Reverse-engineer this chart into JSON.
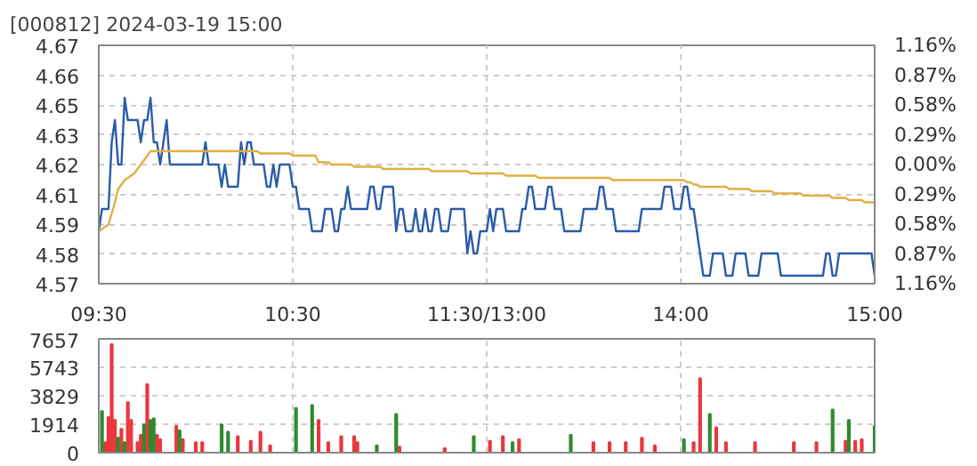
{
  "chart_data": [
    {
      "type": "line",
      "title": "[000812] 2024-03-19 15:00",
      "categories": [
        "09:30",
        null,
        null,
        null,
        null,
        null,
        null,
        null,
        null,
        null,
        null,
        null,
        null,
        null,
        null,
        null,
        null,
        null,
        null,
        null,
        null,
        null,
        null,
        null,
        null,
        null,
        null,
        null,
        null,
        null,
        null,
        null,
        null,
        null,
        null,
        null,
        null,
        null,
        null,
        null,
        null,
        null,
        null,
        null,
        null,
        null,
        null,
        null,
        null,
        null,
        null,
        null,
        null,
        null,
        null,
        null,
        null,
        null,
        null,
        null,
        "10:30",
        null,
        null,
        null,
        null,
        null,
        null,
        null,
        null,
        null,
        null,
        null,
        null,
        null,
        null,
        null,
        null,
        null,
        null,
        null,
        null,
        null,
        null,
        null,
        null,
        null,
        null,
        null,
        null,
        null,
        null,
        null,
        null,
        null,
        null,
        null,
        null,
        null,
        null,
        null,
        null,
        null,
        null,
        null,
        null,
        null,
        null,
        null,
        null,
        null,
        null,
        null,
        null,
        null,
        null,
        null,
        null,
        null,
        null,
        null,
        "11:30/13:00",
        null,
        null,
        null,
        null,
        null,
        null,
        null,
        null,
        null,
        null,
        null,
        null,
        null,
        null,
        null,
        null,
        null,
        null,
        null,
        null,
        null,
        null,
        null,
        null,
        null,
        null,
        null,
        null,
        null,
        null,
        null,
        null,
        null,
        null,
        null,
        null,
        null,
        null,
        null,
        null,
        null,
        null,
        null,
        null,
        null,
        null,
        null,
        null,
        null,
        null,
        null,
        null,
        null,
        null,
        null,
        null,
        null,
        null,
        null,
        "14:00",
        null,
        null,
        null,
        null,
        null,
        null,
        null,
        null,
        null,
        null,
        null,
        null,
        null,
        null,
        null,
        null,
        null,
        null,
        null,
        null,
        null,
        null,
        null,
        null,
        null,
        null,
        null,
        null,
        null,
        null,
        null,
        null,
        null,
        null,
        null,
        null,
        null,
        null,
        null,
        null,
        null,
        null,
        null,
        null,
        null,
        null,
        null,
        null,
        null,
        null,
        null,
        null,
        null,
        null,
        null,
        null,
        null,
        null,
        null,
        "15:00"
      ],
      "ylim": [
        4.5664,
        4.6736
      ],
      "yticks": [
        {
          "value": 4.5664,
          "label": "4.57"
        },
        {
          "value": 4.5798,
          "label": "4.58"
        },
        {
          "value": 4.5932,
          "label": "4.59"
        },
        {
          "value": 4.6066,
          "label": "4.61"
        },
        {
          "value": 4.62,
          "label": "4.62"
        },
        {
          "value": 4.6334,
          "label": "4.63"
        },
        {
          "value": 4.6468,
          "label": "4.65"
        },
        {
          "value": 4.6602,
          "label": "4.66"
        },
        {
          "value": 4.6736,
          "label": "4.67"
        }
      ],
      "y2lim": [
        -1.16,
        1.16
      ],
      "y2ticks": [
        {
          "value": -1.16,
          "label": "1.16%"
        },
        {
          "value": -0.87,
          "label": "0.87%"
        },
        {
          "value": -0.58,
          "label": "0.58%"
        },
        {
          "value": -0.29,
          "label": "0.29%"
        },
        {
          "value": 0,
          "label": "0.00%"
        },
        {
          "value": 0.29,
          "label": "0.29%"
        },
        {
          "value": 0.58,
          "label": "0.58%"
        },
        {
          "value": 0.87,
          "label": "0.87%"
        },
        {
          "value": 1.16,
          "label": "1.16%"
        }
      ],
      "grid": true,
      "series": [
        {
          "color": "#2a5caa",
          "values": [
            4.59,
            4.6,
            4.6,
            4.6,
            4.63,
            4.64,
            4.62,
            4.62,
            4.65,
            4.64,
            4.64,
            4.64,
            4.64,
            4.63,
            4.64,
            4.64,
            4.65,
            4.63,
            4.63,
            4.62,
            4.63,
            4.64,
            4.62,
            4.62,
            4.62,
            4.62,
            4.62,
            4.62,
            4.62,
            4.62,
            4.62,
            4.62,
            4.62,
            4.63,
            4.62,
            4.62,
            4.62,
            4.62,
            4.61,
            4.62,
            4.61,
            4.61,
            4.61,
            4.61,
            4.63,
            4.62,
            4.63,
            4.63,
            4.62,
            4.62,
            4.62,
            4.62,
            4.61,
            4.61,
            4.62,
            4.61,
            4.62,
            4.62,
            4.62,
            4.62,
            4.61,
            4.61,
            4.6,
            4.6,
            4.6,
            4.6,
            4.59,
            4.59,
            4.59,
            4.59,
            4.6,
            4.6,
            4.6,
            4.59,
            4.59,
            4.6,
            4.6,
            4.61,
            4.6,
            4.6,
            4.6,
            4.6,
            4.6,
            4.6,
            4.61,
            4.61,
            4.6,
            4.6,
            4.61,
            4.61,
            4.61,
            4.61,
            4.59,
            4.6,
            4.6,
            4.59,
            4.59,
            4.59,
            4.6,
            4.59,
            4.59,
            4.6,
            4.59,
            4.59,
            4.6,
            4.6,
            4.59,
            4.59,
            4.59,
            4.6,
            4.6,
            4.6,
            4.6,
            4.6,
            4.58,
            4.59,
            4.58,
            4.58,
            4.59,
            4.59,
            4.59,
            4.6,
            4.59,
            4.6,
            4.6,
            4.6,
            4.59,
            4.59,
            4.59,
            4.59,
            4.59,
            4.6,
            4.6,
            4.61,
            4.61,
            4.6,
            4.6,
            4.6,
            4.6,
            4.61,
            4.61,
            4.6,
            4.6,
            4.6,
            4.59,
            4.59,
            4.59,
            4.59,
            4.59,
            4.59,
            4.6,
            4.6,
            4.6,
            4.6,
            4.6,
            4.61,
            4.61,
            4.6,
            4.6,
            4.6,
            4.59,
            4.59,
            4.59,
            4.59,
            4.59,
            4.59,
            4.59,
            4.59,
            4.6,
            4.6,
            4.6,
            4.6,
            4.6,
            4.6,
            4.6,
            4.61,
            4.61,
            4.61,
            4.6,
            4.6,
            4.6,
            4.61,
            4.61,
            4.6,
            4.6,
            4.59,
            4.58,
            4.57,
            4.57,
            4.57,
            4.58,
            4.58,
            4.58,
            4.58,
            4.57,
            4.57,
            4.57,
            4.58,
            4.58,
            4.58,
            4.58,
            4.57,
            4.57,
            4.57,
            4.57,
            4.58,
            4.58,
            4.58,
            4.58,
            4.58,
            4.58,
            4.57,
            4.57,
            4.57,
            4.57,
            4.57,
            4.57,
            4.57,
            4.57,
            4.57,
            4.57,
            4.57,
            4.57,
            4.57,
            4.57,
            4.58,
            4.58,
            4.57,
            4.57,
            4.58,
            4.58,
            4.58,
            4.58,
            4.58,
            4.58,
            4.58,
            4.58,
            4.58,
            4.58,
            4.58,
            4.57
          ]
        },
        {
          "color": "#e0b040",
          "values": [
            4.59,
            4.591,
            4.592,
            4.593,
            4.598,
            4.603,
            4.609,
            4.611,
            4.613,
            4.614,
            4.615,
            4.616,
            4.618,
            4.62,
            4.622,
            4.624,
            4.626,
            4.626,
            4.626,
            4.626,
            4.626,
            4.626,
            4.626,
            4.626,
            4.626,
            4.626,
            4.626,
            4.626,
            4.626,
            4.626,
            4.626,
            4.626,
            4.626,
            4.626,
            4.626,
            4.626,
            4.626,
            4.626,
            4.626,
            4.626,
            4.626,
            4.626,
            4.626,
            4.626,
            4.626,
            4.626,
            4.626,
            4.626,
            4.626,
            4.626,
            4.625,
            4.625,
            4.625,
            4.625,
            4.625,
            4.625,
            4.625,
            4.625,
            4.625,
            4.625,
            4.624,
            4.624,
            4.624,
            4.624,
            4.624,
            4.624,
            4.624,
            4.624,
            4.621,
            4.621,
            4.621,
            4.621,
            4.62,
            4.62,
            4.62,
            4.62,
            4.62,
            4.62,
            4.62,
            4.619,
            4.619,
            4.619,
            4.619,
            4.619,
            4.619,
            4.619,
            4.619,
            4.619,
            4.618,
            4.618,
            4.618,
            4.618,
            4.618,
            4.618,
            4.618,
            4.618,
            4.618,
            4.618,
            4.618,
            4.618,
            4.618,
            4.618,
            4.618,
            4.617,
            4.617,
            4.617,
            4.617,
            4.617,
            4.617,
            4.617,
            4.617,
            4.617,
            4.617,
            4.617,
            4.617,
            4.616,
            4.616,
            4.616,
            4.616,
            4.616,
            4.616,
            4.616,
            4.616,
            4.616,
            4.616,
            4.616,
            4.615,
            4.615,
            4.615,
            4.615,
            4.615,
            4.615,
            4.615,
            4.615,
            4.615,
            4.615,
            4.614,
            4.614,
            4.614,
            4.614,
            4.614,
            4.614,
            4.614,
            4.614,
            4.614,
            4.614,
            4.614,
            4.614,
            4.614,
            4.614,
            4.614,
            4.614,
            4.614,
            4.614,
            4.614,
            4.614,
            4.614,
            4.614,
            4.614,
            4.613,
            4.613,
            4.613,
            4.613,
            4.613,
            4.613,
            4.613,
            4.613,
            4.613,
            4.613,
            4.613,
            4.613,
            4.613,
            4.613,
            4.613,
            4.613,
            4.613,
            4.613,
            4.613,
            4.613,
            4.613,
            4.613,
            4.613,
            4.612,
            4.612,
            4.611,
            4.611,
            4.61,
            4.61,
            4.61,
            4.61,
            4.61,
            4.61,
            4.61,
            4.61,
            4.61,
            4.609,
            4.609,
            4.609,
            4.609,
            4.609,
            4.609,
            4.609,
            4.608,
            4.608,
            4.608,
            4.608,
            4.608,
            4.608,
            4.608,
            4.607,
            4.607,
            4.607,
            4.607,
            4.607,
            4.607,
            4.607,
            4.607,
            4.607,
            4.606,
            4.606,
            4.606,
            4.606,
            4.606,
            4.606,
            4.606,
            4.606,
            4.606,
            4.605,
            4.605,
            4.605,
            4.605,
            4.605,
            4.604,
            4.604,
            4.604,
            4.604,
            4.604,
            4.603,
            4.603,
            4.603,
            4.603
          ]
        }
      ]
    },
    {
      "type": "bar",
      "tick_labels": "y",
      "categories": [
        null,
        null,
        null,
        null,
        null,
        null,
        null,
        null,
        null,
        null,
        null,
        null,
        null,
        null,
        null,
        null,
        null,
        null,
        null,
        null,
        null,
        null,
        null,
        null,
        null,
        null,
        null,
        null,
        null,
        null,
        null,
        null,
        null,
        null,
        null,
        null,
        null,
        null,
        null,
        null,
        null,
        null,
        null,
        null,
        null,
        null,
        null,
        null,
        null,
        null,
        null,
        null,
        null,
        null,
        null,
        null,
        null,
        null,
        null,
        null,
        null,
        null,
        null,
        null,
        null,
        null,
        null,
        null,
        null,
        null,
        null,
        null,
        null,
        null,
        null,
        null,
        null,
        null,
        null,
        null,
        null,
        null,
        null,
        null,
        null,
        null,
        null,
        null,
        null,
        null,
        null,
        null,
        null,
        null,
        null,
        null,
        null,
        null,
        null,
        null,
        null,
        null,
        null,
        null,
        null,
        null,
        null,
        null,
        null,
        null,
        null,
        null,
        null,
        null,
        null,
        null,
        null,
        null,
        null,
        null,
        null,
        null,
        null,
        null,
        null,
        null,
        null,
        null,
        null,
        null,
        null,
        null,
        null,
        null,
        null,
        null,
        null,
        null,
        null,
        null,
        null,
        null,
        null,
        null,
        null,
        null,
        null,
        null,
        null,
        null,
        null,
        null,
        null,
        null,
        null,
        null,
        null,
        null,
        null,
        null,
        null,
        null,
        null,
        null,
        null,
        null,
        null,
        null,
        null,
        null,
        null,
        null,
        null,
        null,
        null,
        null,
        null,
        null,
        null,
        null,
        null,
        null,
        null,
        null,
        null,
        null,
        null,
        null,
        null,
        null,
        null,
        null,
        null,
        null,
        null,
        null,
        null,
        null,
        null,
        null,
        null,
        null,
        null,
        null,
        null,
        null,
        null,
        null,
        null,
        null,
        null,
        null,
        null,
        null,
        null,
        null,
        null,
        null,
        null,
        null,
        null,
        null,
        null,
        null,
        null,
        null,
        null,
        null,
        null,
        null,
        null,
        null,
        null,
        null,
        null,
        null,
        null,
        null,
        null,
        null,
        null
      ],
      "ylim": [
        0,
        7657
      ],
      "yticks": [
        0,
        1914,
        3829,
        5743,
        7657
      ],
      "grid": true,
      "series": [
        {
          "color": "#e8383d",
          "values": [
            null,
            null,
            700,
            2400,
            7300,
            2200,
            null,
            1600,
            null,
            3400,
            2200,
            null,
            700,
            1200,
            null,
            4600,
            null,
            null,
            1200,
            900,
            null,
            null,
            null,
            null,
            1800,
            null,
            900,
            null,
            null,
            null,
            700,
            null,
            700,
            null,
            null,
            null,
            null,
            null,
            null,
            null,
            null,
            null,
            null,
            1100,
            null,
            null,
            null,
            800,
            null,
            null,
            1400,
            null,
            null,
            500,
            null,
            null,
            null,
            null,
            null,
            null,
            null,
            null,
            null,
            null,
            null,
            null,
            null,
            null,
            2200,
            null,
            null,
            700,
            null,
            null,
            null,
            1100,
            null,
            null,
            null,
            1100,
            700,
            null,
            null,
            null,
            null,
            null,
            null,
            null,
            null,
            null,
            null,
            null,
            null,
            400,
            null,
            null,
            null,
            null,
            null,
            null,
            null,
            null,
            null,
            null,
            null,
            null,
            null,
            300,
            null,
            null,
            null,
            null,
            null,
            null,
            null,
            null,
            null,
            null,
            null,
            null,
            null,
            800,
            null,
            null,
            null,
            1100,
            null,
            null,
            null,
            null,
            900,
            null,
            null,
            null,
            null,
            null,
            null,
            null,
            null,
            null,
            null,
            null,
            null,
            null,
            null,
            null,
            null,
            null,
            null,
            null,
            null,
            null,
            null,
            700,
            null,
            null,
            null,
            null,
            700,
            null,
            null,
            null,
            null,
            700,
            null,
            null,
            null,
            null,
            1000,
            null,
            null,
            null,
            500,
            null,
            null,
            null,
            null,
            null,
            null,
            null,
            null,
            null,
            null,
            null,
            700,
            null,
            5000,
            null,
            null,
            null,
            null,
            1700,
            null,
            null,
            700,
            null,
            null,
            null,
            null,
            null,
            null,
            null,
            null,
            700,
            null,
            null,
            null,
            null,
            null,
            null,
            null,
            null,
            null,
            null,
            null,
            700,
            null,
            null,
            null,
            null,
            null,
            null,
            700,
            null,
            null,
            null,
            null,
            null,
            null,
            null,
            null,
            800,
            null,
            null,
            800,
            null,
            900,
            null,
            null,
            null,
            null
          ]
        },
        {
          "color": "#2e8b2e",
          "values": [
            null,
            2800,
            null,
            null,
            null,
            null,
            1000,
            null,
            700,
            null,
            null,
            null,
            null,
            null,
            1900,
            null,
            2200,
            2300,
            null,
            null,
            null,
            null,
            null,
            null,
            null,
            1500,
            null,
            null,
            null,
            null,
            null,
            null,
            null,
            null,
            null,
            null,
            null,
            null,
            1900,
            null,
            1400,
            null,
            null,
            null,
            null,
            null,
            null,
            null,
            null,
            null,
            null,
            null,
            null,
            null,
            null,
            null,
            null,
            null,
            null,
            null,
            null,
            3000,
            null,
            null,
            null,
            null,
            3200,
            null,
            null,
            null,
            null,
            null,
            null,
            null,
            null,
            null,
            null,
            null,
            null,
            null,
            null,
            null,
            null,
            null,
            null,
            null,
            500,
            null,
            null,
            null,
            null,
            null,
            2600,
            null,
            null,
            null,
            null,
            null,
            null,
            null,
            null,
            null,
            null,
            null,
            null,
            null,
            null,
            null,
            null,
            null,
            null,
            null,
            null,
            null,
            null,
            null,
            1100,
            null,
            null,
            null,
            null,
            null,
            null,
            null,
            null,
            null,
            null,
            null,
            700,
            null,
            null,
            null,
            null,
            null,
            null,
            null,
            null,
            null,
            null,
            null,
            null,
            null,
            null,
            null,
            null,
            null,
            1200,
            null,
            null,
            null,
            null,
            null,
            null,
            null,
            null,
            null,
            null,
            null,
            null,
            null,
            null,
            null,
            null,
            null,
            null,
            null,
            null,
            null,
            null,
            null,
            null,
            null,
            null,
            null,
            null,
            null,
            null,
            null,
            null,
            null,
            null,
            900,
            null,
            null,
            null,
            null,
            null,
            null,
            null,
            2600,
            null,
            null,
            null,
            null,
            null,
            null,
            null,
            null,
            null,
            null,
            null,
            null,
            null,
            null,
            null,
            null,
            null,
            null,
            null,
            null,
            null,
            null,
            null,
            null,
            null,
            null,
            null,
            null,
            null,
            null,
            null,
            null,
            null,
            null,
            null,
            null,
            null,
            2900,
            null,
            null,
            null,
            null,
            2200,
            null,
            null,
            null,
            null,
            null,
            null,
            null,
            1800
          ]
        }
      ]
    }
  ]
}
